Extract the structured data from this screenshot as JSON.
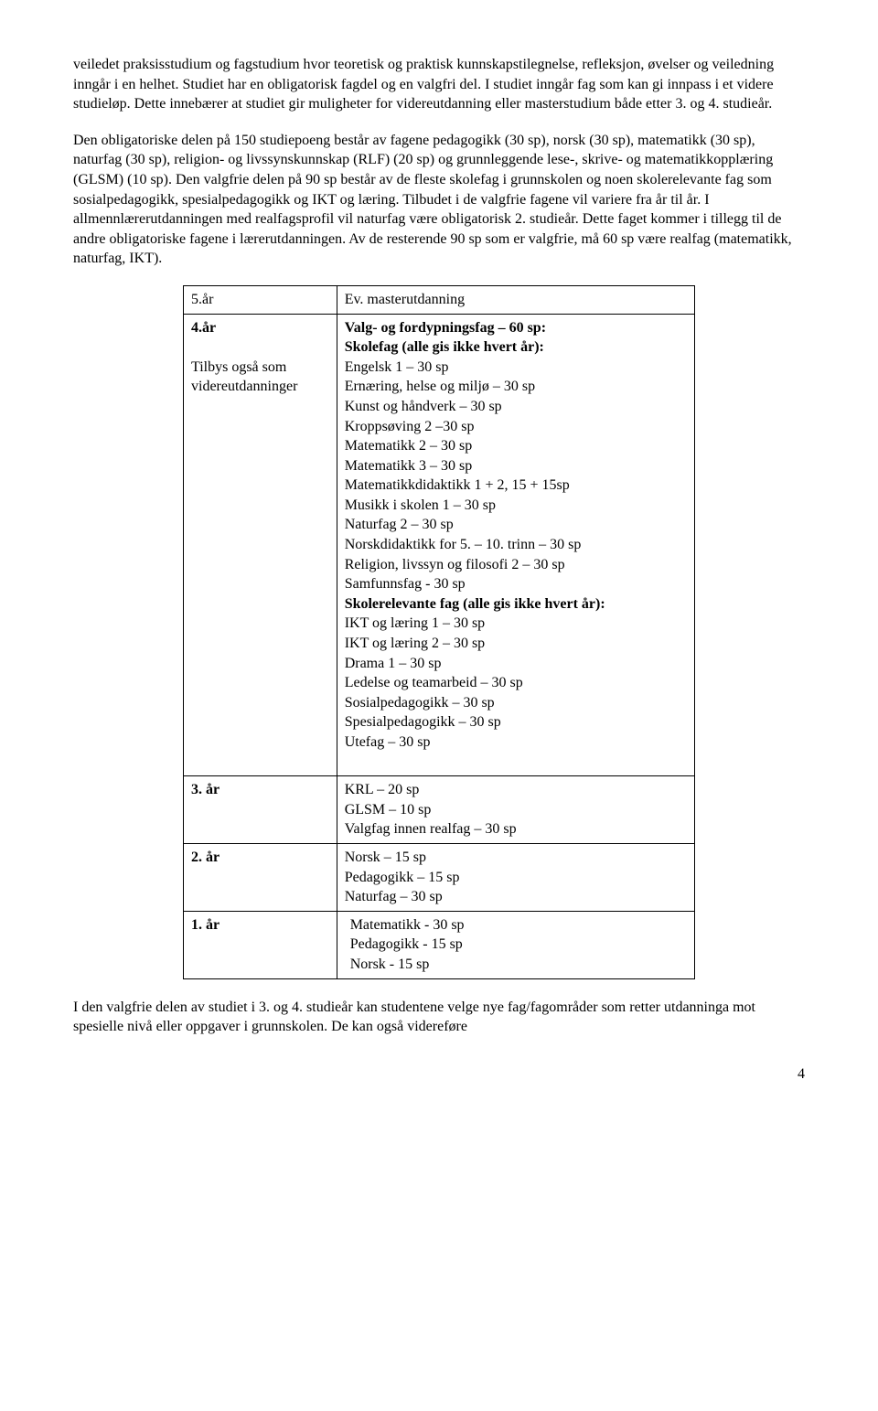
{
  "para1": "veiledet praksisstudium og fagstudium hvor teoretisk og praktisk kunnskapstilegnelse, refleksjon, øvelser og veiledning inngår i en helhet. Studiet har en obligatorisk fagdel og en valgfri del. I studiet inngår fag som kan gi innpass i et videre studieløp. Dette innebærer at studiet gir muligheter for videreutdanning eller masterstudium både etter 3. og 4. studieår.",
  "para2": "Den obligatoriske delen på 150 studiepoeng består av fagene pedagogikk (30 sp), norsk (30 sp), matematikk (30 sp), naturfag (30 sp), religion- og livssynskunnskap (RLF) (20 sp) og grunnleggende lese-, skrive- og matematikkopplæring (GLSM) (10 sp). Den valgfrie delen på 90 sp består av de fleste skolefag i grunnskolen og noen skolerelevante fag som sosialpedagogikk, spesialpedagogikk og IKT og læring. Tilbudet i de valgfrie fagene vil variere fra år til år. I allmennlærerutdanningen med realfagsprofil vil naturfag være obligatorisk 2. studieår. Dette faget kommer i tillegg til de andre obligatoriske fagene i lærerutdanningen. Av de resterende 90 sp som er valgfrie, må 60 sp være realfag (matematikk, naturfag, IKT).",
  "table": {
    "row1": {
      "c1": "5.år",
      "c2": "Ev. masterutdanning"
    },
    "row2": {
      "c1a": "4.år",
      "c1b": "Tilbys også som videreutdanninger",
      "c2_bold1": "Valg- og fordypningsfag – 60 sp:",
      "c2_bold2": "Skolefag (alle gis ikke hvert år):",
      "c2_l1": "Engelsk 1 – 30 sp",
      "c2_l2": "Ernæring, helse og miljø – 30 sp",
      "c2_l3": "Kunst og håndverk – 30 sp",
      "c2_l4": "Kroppsøving 2 –30 sp",
      "c2_l5": "Matematikk 2  –  30 sp",
      "c2_l6": "Matematikk 3 – 30 sp",
      "c2_l7": "Matematikkdidaktikk 1 + 2, 15 + 15sp",
      "c2_l8": "Musikk i skolen 1 – 30 sp",
      "c2_l9": "Naturfag 2 – 30 sp",
      "c2_l10": "Norskdidaktikk for 5. – 10. trinn – 30 sp",
      "c2_l11": "Religion, livssyn og filosofi 2 – 30 sp",
      "c2_l12": "Samfunnsfag - 30 sp",
      "c2_bold3": "Skolerelevante fag (alle gis ikke hvert år):",
      "c2_l13": "IKT og læring 1 – 30 sp",
      "c2_l14": "IKT og læring 2 – 30 sp",
      "c2_l15": "Drama 1 – 30 sp",
      "c2_l16": "Ledelse og teamarbeid – 30 sp",
      "c2_l17": "Sosialpedagogikk – 30 sp",
      "c2_l18": "Spesialpedagogikk – 30 sp",
      "c2_l19": "Utefag – 30 sp"
    },
    "row3": {
      "c1": "3. år",
      "c2_l1": "KRL – 20 sp",
      "c2_l2": "GLSM – 10 sp",
      "c2_l3": "Valgfag innen realfag – 30 sp"
    },
    "row4": {
      "c1": "2. år",
      "c2_l1": "Norsk – 15 sp",
      "c2_l2": "Pedagogikk – 15 sp",
      "c2_l3": "Naturfag – 30 sp"
    },
    "row5": {
      "c1": "1. år",
      "c2_l1": " Matematikk - 30 sp",
      "c2_l2": " Pedagogikk - 15 sp",
      "c2_l3": " Norsk - 15 sp"
    }
  },
  "para3": "I den valgfrie delen av studiet i 3. og 4. studieår kan studentene velge nye fag/fagområder som retter utdanninga mot spesielle nivå eller oppgaver i grunnskolen. De kan også videreføre",
  "pageNum": "4"
}
